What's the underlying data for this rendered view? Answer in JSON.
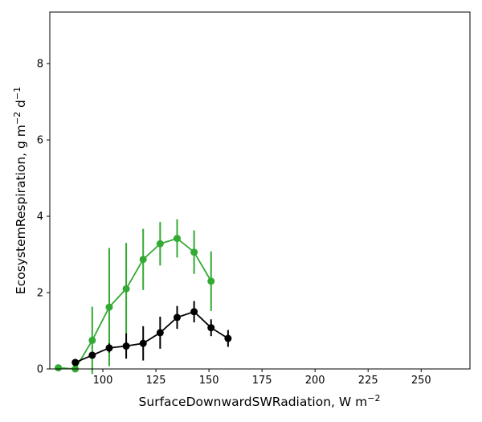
{
  "chart_data": {
    "type": "line",
    "xlabel": {
      "main": "SurfaceDownwardSWRadiation,  W m",
      "exp": "−2"
    },
    "ylabel": {
      "main": "EcosystemRespiration,  g m",
      "exp1": "−2",
      "mid": " d",
      "exp2": "−1"
    },
    "xlim": [
      75,
      273
    ],
    "ylim": [
      0,
      9.35
    ],
    "xticks": [
      100,
      125,
      150,
      175,
      200,
      225,
      250
    ],
    "yticks": [
      0,
      2,
      4,
      6,
      8
    ],
    "grid": false,
    "series": [
      {
        "color": "#33aa33",
        "x": [
          79,
          87,
          95,
          103,
          111,
          119,
          127,
          135,
          143,
          151
        ],
        "y": [
          0.03,
          0.0,
          0.75,
          1.62,
          2.1,
          2.87,
          3.28,
          3.42,
          3.06,
          2.3
        ],
        "err": [
          0.0,
          0.0,
          0.88,
          1.55,
          1.2,
          0.8,
          0.57,
          0.5,
          0.57,
          0.78
        ]
      },
      {
        "color": "#000000",
        "x": [
          87,
          95,
          103,
          111,
          119,
          127,
          135,
          143,
          151,
          159
        ],
        "y": [
          0.17,
          0.36,
          0.55,
          0.6,
          0.67,
          0.95,
          1.35,
          1.5,
          1.08,
          0.8
        ],
        "err": [
          0.0,
          0.0,
          0.12,
          0.33,
          0.45,
          0.42,
          0.3,
          0.28,
          0.22,
          0.22
        ]
      }
    ]
  }
}
